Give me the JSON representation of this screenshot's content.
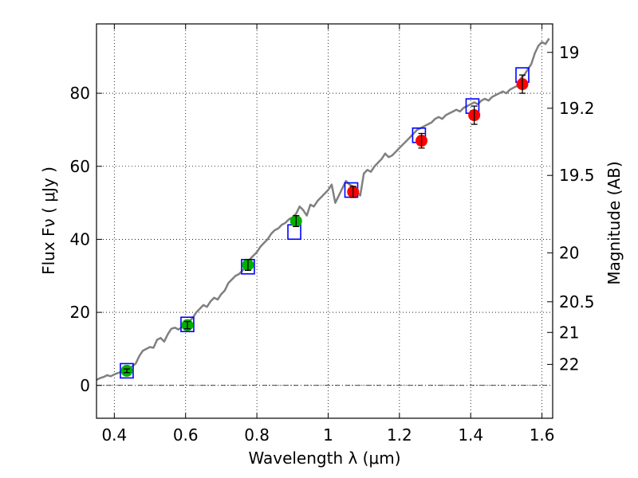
{
  "chart_data": {
    "type": "scatter",
    "xlabel": "Wavelength  λ (μm)",
    "ylabel": "Flux  Fν  ( μJy )",
    "ylabel_right": "Magnitude (AB)",
    "xlim": [
      0.35,
      1.63
    ],
    "ylim": [
      -9,
      99
    ],
    "grid": true,
    "x_ticks": [
      0.4,
      0.6,
      0.8,
      1.0,
      1.2,
      1.4,
      1.6
    ],
    "x_tick_labels": [
      "0.4",
      "0.6",
      "0.8",
      "1",
      "1.2",
      "1.4",
      "1.6"
    ],
    "y_ticks": [
      0,
      20,
      40,
      60,
      80
    ],
    "y_tick_labels": [
      "0",
      "20",
      "40",
      "60",
      "80"
    ],
    "right_ticks": [
      {
        "label": "19",
        "flux": 91.2
      },
      {
        "label": "19.2",
        "flux": 75.9
      },
      {
        "label": "19.5",
        "flux": 57.5
      },
      {
        "label": "20",
        "flux": 36.3
      },
      {
        "label": "20.5",
        "flux": 22.9
      },
      {
        "label": "21",
        "flux": 14.5
      },
      {
        "label": "22",
        "flux": 5.75
      }
    ],
    "series": [
      {
        "name": "model spectrum",
        "kind": "line",
        "color": "#808080",
        "x": [
          0.35,
          0.36,
          0.37,
          0.38,
          0.39,
          0.4,
          0.41,
          0.42,
          0.43,
          0.44,
          0.45,
          0.46,
          0.47,
          0.48,
          0.49,
          0.5,
          0.51,
          0.52,
          0.53,
          0.54,
          0.55,
          0.56,
          0.57,
          0.58,
          0.59,
          0.6,
          0.61,
          0.62,
          0.63,
          0.64,
          0.65,
          0.66,
          0.67,
          0.68,
          0.69,
          0.7,
          0.71,
          0.72,
          0.73,
          0.74,
          0.75,
          0.76,
          0.77,
          0.78,
          0.79,
          0.8,
          0.81,
          0.82,
          0.83,
          0.84,
          0.85,
          0.86,
          0.87,
          0.88,
          0.89,
          0.9,
          0.91,
          0.92,
          0.93,
          0.94,
          0.95,
          0.96,
          0.97,
          0.98,
          0.99,
          1.0,
          1.01,
          1.02,
          1.03,
          1.04,
          1.05,
          1.06,
          1.07,
          1.08,
          1.09,
          1.1,
          1.11,
          1.12,
          1.13,
          1.14,
          1.15,
          1.16,
          1.17,
          1.18,
          1.19,
          1.2,
          1.21,
          1.22,
          1.23,
          1.24,
          1.25,
          1.26,
          1.27,
          1.28,
          1.29,
          1.3,
          1.31,
          1.32,
          1.33,
          1.34,
          1.35,
          1.36,
          1.37,
          1.38,
          1.39,
          1.4,
          1.41,
          1.42,
          1.43,
          1.44,
          1.45,
          1.46,
          1.47,
          1.48,
          1.49,
          1.5,
          1.51,
          1.52,
          1.53,
          1.54,
          1.55,
          1.56,
          1.57,
          1.58,
          1.59,
          1.6,
          1.61,
          1.62
        ],
        "y": [
          1.5,
          2.0,
          2.3,
          2.8,
          2.5,
          3.0,
          3.4,
          3.7,
          4.0,
          4.5,
          5.2,
          6.0,
          8.0,
          9.5,
          10.0,
          10.5,
          10.3,
          12.5,
          13.0,
          12.0,
          14.0,
          15.5,
          15.8,
          15.3,
          16.0,
          17.0,
          17.5,
          18.5,
          20.0,
          21.0,
          22.0,
          21.5,
          23.0,
          24.0,
          23.5,
          25.0,
          26.0,
          28.0,
          29.0,
          30.0,
          30.5,
          31.5,
          32.5,
          34.5,
          35.5,
          36.5,
          38.0,
          39.0,
          40.0,
          41.5,
          42.5,
          43.0,
          44.0,
          44.5,
          45.5,
          46.0,
          47.0,
          49.0,
          48.0,
          46.5,
          49.5,
          49.0,
          50.5,
          51.5,
          52.5,
          53.5,
          55.0,
          50.0,
          52.0,
          54.0,
          56.0,
          55.0,
          54.5,
          53.0,
          52.0,
          58.0,
          59.0,
          58.5,
          60.0,
          61.0,
          62.0,
          63.5,
          62.5,
          63.0,
          64.0,
          65.0,
          66.0,
          67.0,
          68.0,
          69.0,
          70.0,
          70.5,
          71.0,
          71.5,
          72.0,
          73.0,
          73.5,
          73.0,
          74.0,
          74.5,
          75.0,
          75.5,
          75.0,
          76.0,
          76.5,
          77.0,
          77.5,
          77.0,
          78.0,
          78.5,
          78.0,
          79.0,
          79.5,
          80.0,
          80.5,
          80.0,
          81.0,
          81.5,
          82.0,
          84.0,
          85.0,
          86.5,
          88.0,
          91.0,
          93.0,
          94.0,
          93.5,
          95.0
        ]
      },
      {
        "name": "model synthetic photometry",
        "kind": "open-square",
        "color": "#0000ff",
        "x": [
          0.435,
          0.605,
          0.775,
          0.905,
          1.065,
          1.255,
          1.405,
          1.545
        ],
        "y": [
          4.0,
          16.7,
          32.5,
          42.0,
          53.5,
          68.5,
          76.5,
          85.0
        ]
      },
      {
        "name": "optical photometry",
        "kind": "point-errorbar",
        "color": "#00b000",
        "x": [
          0.435,
          0.605,
          0.775,
          0.91
        ],
        "y": [
          4.0,
          16.5,
          33.0,
          45.0
        ],
        "yerr": [
          0.5,
          1.0,
          1.5,
          1.5
        ]
      },
      {
        "name": "near-IR photometry",
        "kind": "point-errorbar",
        "color": "#ff0000",
        "x": [
          1.07,
          1.262,
          1.41,
          1.545
        ],
        "y": [
          53.0,
          67.0,
          74.0,
          82.5
        ],
        "yerr": [
          1.5,
          2.0,
          2.5,
          2.5
        ]
      }
    ]
  }
}
